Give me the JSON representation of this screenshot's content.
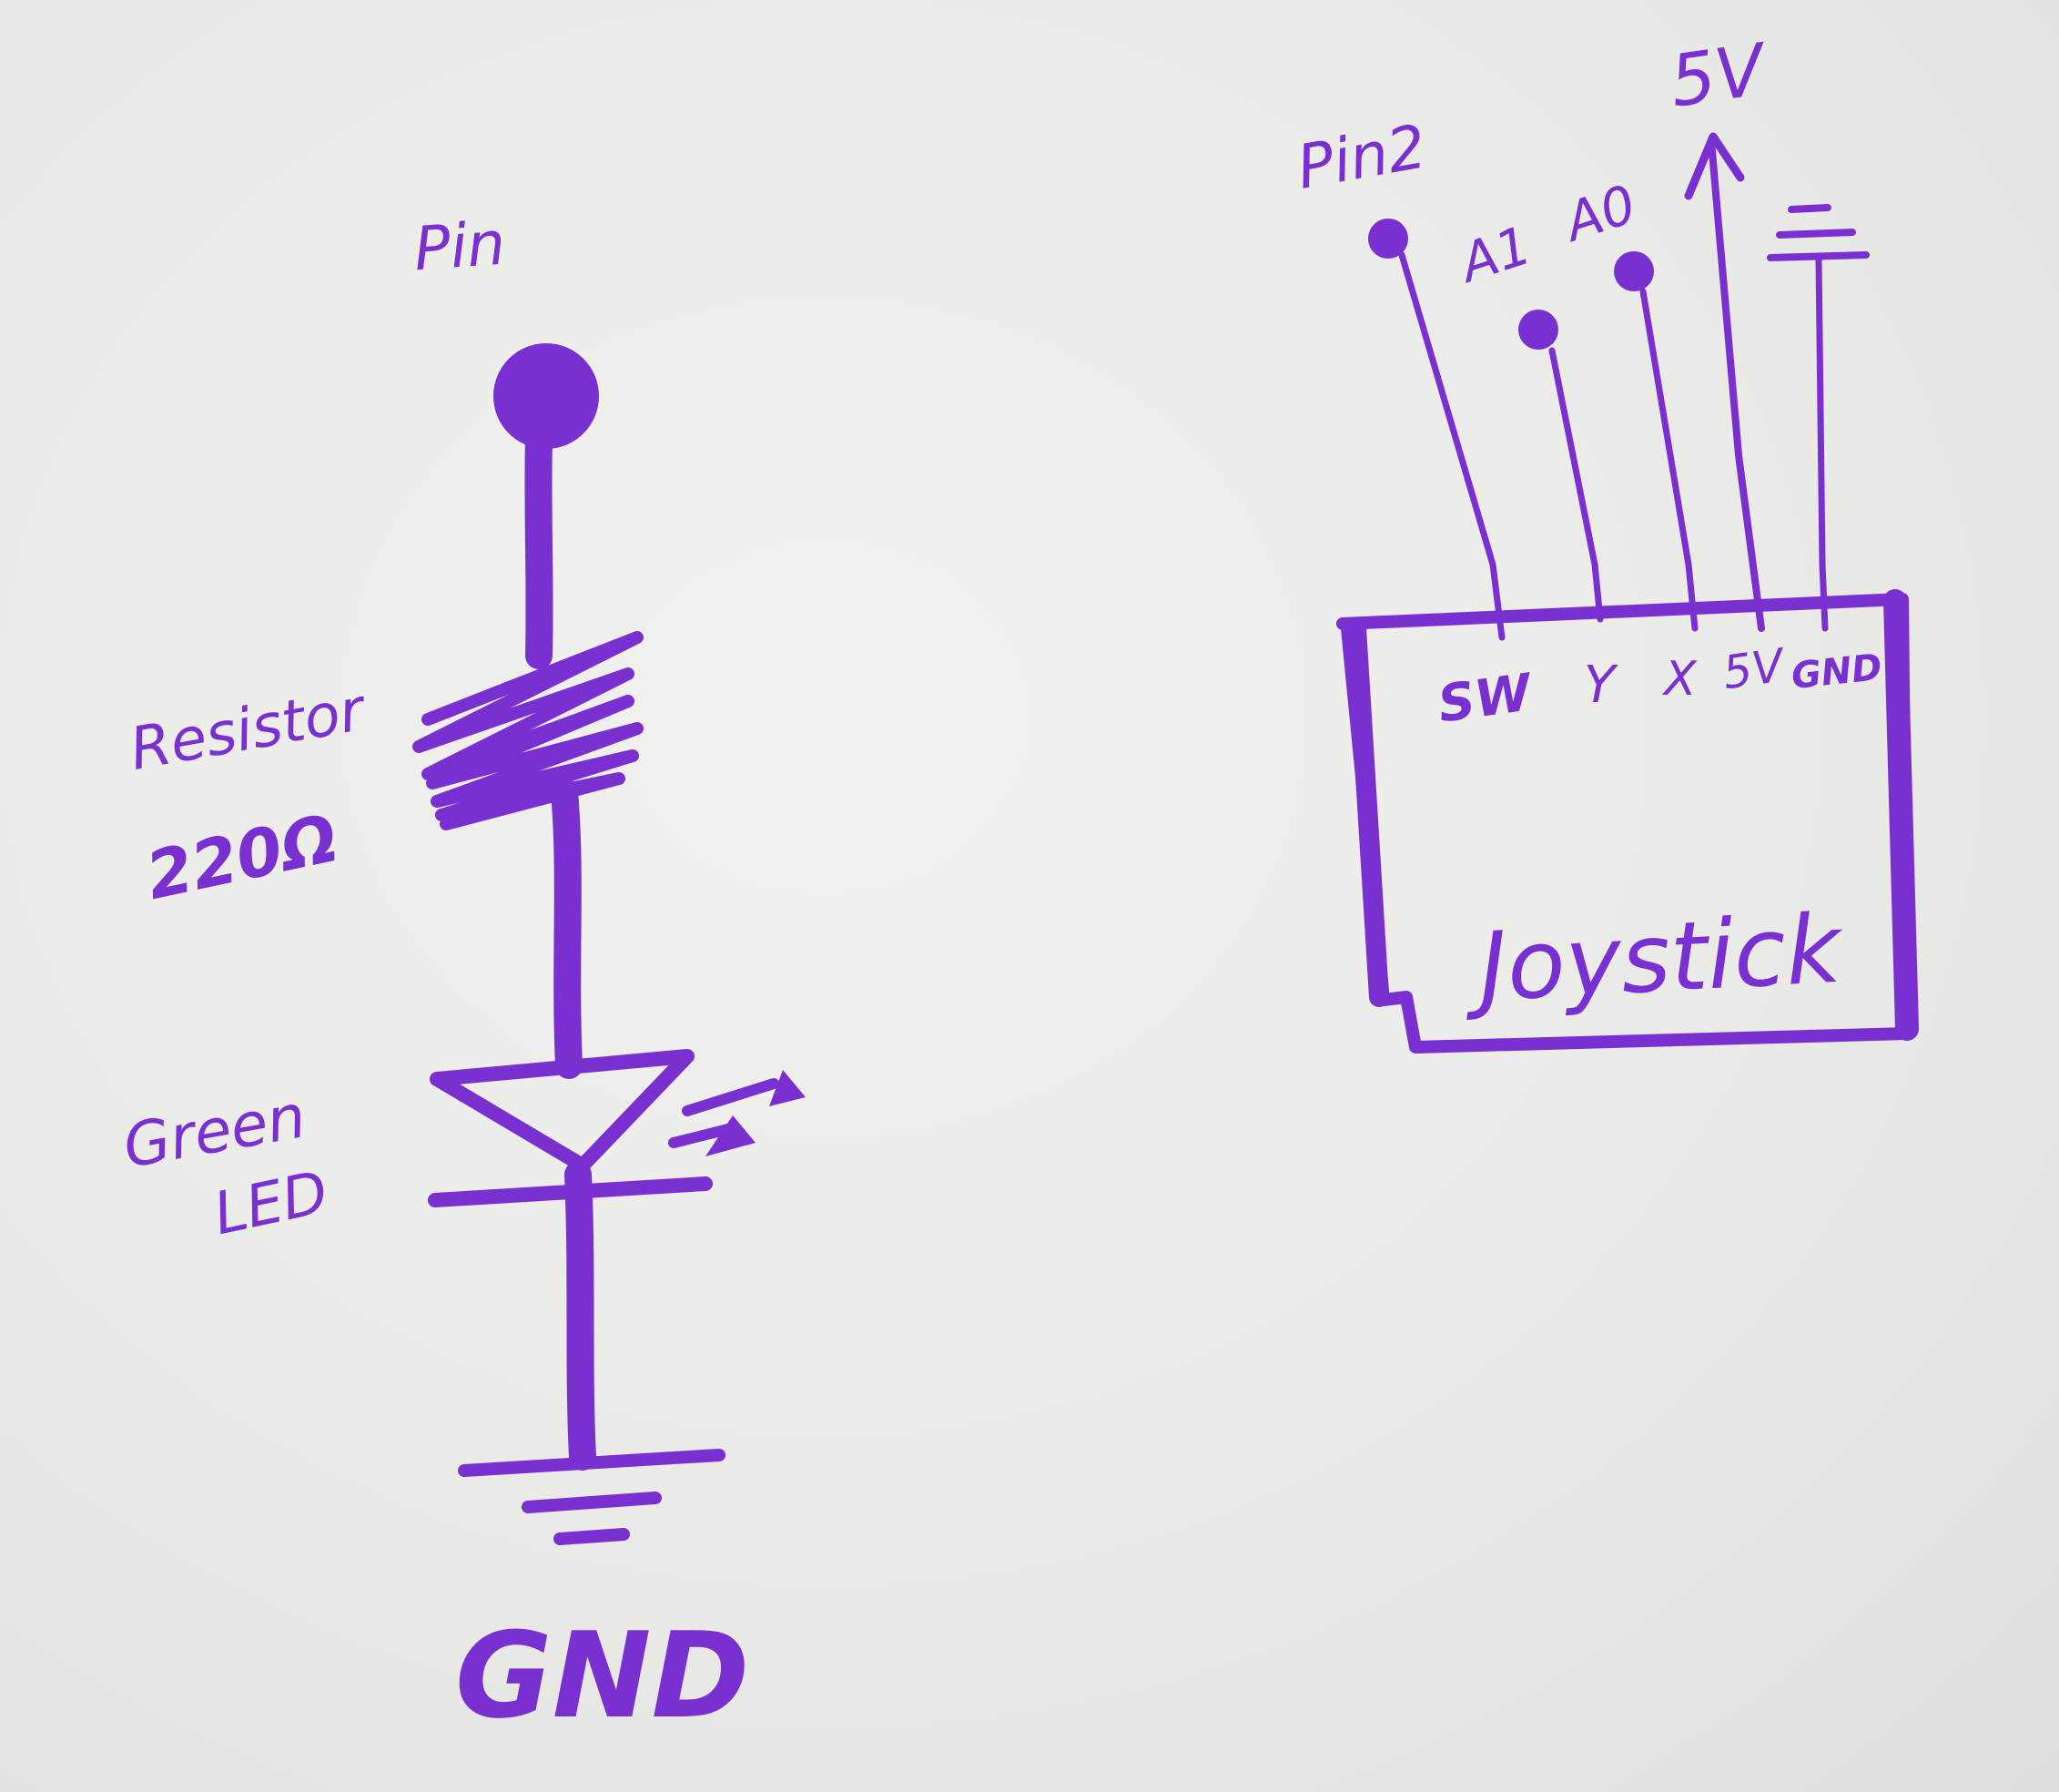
{
  "ink_color": "#7a2fd0",
  "paper_color": "#ebebe8",
  "led_circuit": {
    "pin_label": "Pin",
    "resistor_label_line1": "Resistor",
    "resistor_label_line2": "220Ω",
    "led_label_line1": "Green",
    "led_label_line2": "LED",
    "ground_label": "GND"
  },
  "joystick_circuit": {
    "pin2_label": "Pin2",
    "a1_label": "A1",
    "a0_label": "A0",
    "supply_label": "5V",
    "module_label": "Joystick",
    "module_pins": [
      "SW",
      "Y",
      "X",
      "5V",
      "GND"
    ]
  }
}
